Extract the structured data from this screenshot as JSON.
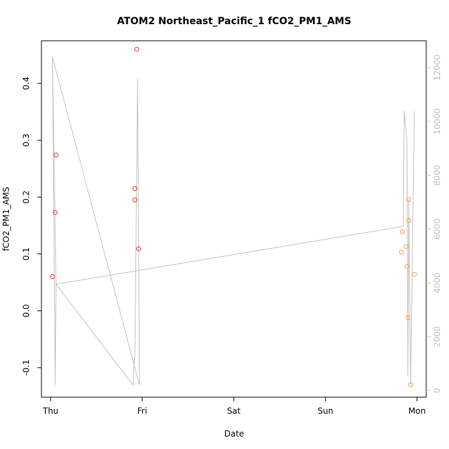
{
  "chart_data": {
    "type": "scatter",
    "title": "ATOM2 Northeast_Pacific_1 fCO2_PM1_AMS",
    "xlabel": "Date",
    "ylabel": "fCO2_PM1_AMS",
    "x_ticks": [
      {
        "label": "Thu",
        "day": 0
      },
      {
        "label": "Fri",
        "day": 1
      },
      {
        "label": "Sat",
        "day": 2
      },
      {
        "label": "Sun",
        "day": 3
      },
      {
        "label": "Mon",
        "day": 4
      }
    ],
    "xlim": [
      -0.1,
      4.1
    ],
    "ylim": [
      -0.152,
      0.475
    ],
    "y_ticks": [
      -0.1,
      0.0,
      0.1,
      0.2,
      0.3,
      0.4
    ],
    "y_tick_labels": [
      "-0.1",
      "0.0",
      "0.1",
      "0.2",
      "0.3",
      "0.4"
    ],
    "y2lim": [
      -250,
      13000
    ],
    "y2_ticks": [
      0,
      2000,
      4000,
      6000,
      8000,
      10000,
      12000
    ],
    "y2_tick_labels": [
      "0",
      "2000",
      "4000",
      "6000",
      "8000",
      "10000",
      "12000"
    ],
    "series": [
      {
        "color": "#e03030",
        "points": [
          {
            "x": 0.02,
            "y": 0.06
          },
          {
            "x": 0.05,
            "y": 0.173
          },
          {
            "x": 0.06,
            "y": 0.274
          },
          {
            "x": 0.92,
            "y": 0.215
          },
          {
            "x": 0.92,
            "y": 0.195
          },
          {
            "x": 0.94,
            "y": 0.46
          },
          {
            "x": 0.96,
            "y": 0.109
          }
        ]
      },
      {
        "color": "#f0a040",
        "points": [
          {
            "x": 3.83,
            "y": 0.103
          },
          {
            "x": 3.84,
            "y": 0.139
          },
          {
            "x": 3.88,
            "y": 0.113
          },
          {
            "x": 3.89,
            "y": 0.078
          },
          {
            "x": 3.9,
            "y": -0.012
          },
          {
            "x": 3.91,
            "y": 0.196
          },
          {
            "x": 3.91,
            "y": 0.159
          },
          {
            "x": 3.93,
            "y": -0.13
          },
          {
            "x": 3.97,
            "y": 0.064
          }
        ]
      }
    ],
    "line_series": {
      "color": "#c0c0c0",
      "axis": "right",
      "points": [
        {
          "x": 0.02,
          "y": 12400
        },
        {
          "x": 0.04,
          "y": 4300
        },
        {
          "x": 0.05,
          "y": 200
        },
        {
          "x": 0.06,
          "y": 3950
        },
        {
          "x": 0.9,
          "y": 200
        },
        {
          "x": 0.92,
          "y": 1500
        },
        {
          "x": 0.95,
          "y": 11600
        },
        {
          "x": 0.97,
          "y": 200
        },
        {
          "x": 0.02,
          "y": 12400
        },
        {
          "x": 0.06,
          "y": 3950
        },
        {
          "x": 3.85,
          "y": 6100
        },
        {
          "x": 3.86,
          "y": 10400
        },
        {
          "x": 3.89,
          "y": 9200
        },
        {
          "x": 3.9,
          "y": 550
        },
        {
          "x": 3.91,
          "y": 7100
        },
        {
          "x": 3.93,
          "y": 200
        },
        {
          "x": 3.97,
          "y": 10400
        }
      ]
    }
  }
}
